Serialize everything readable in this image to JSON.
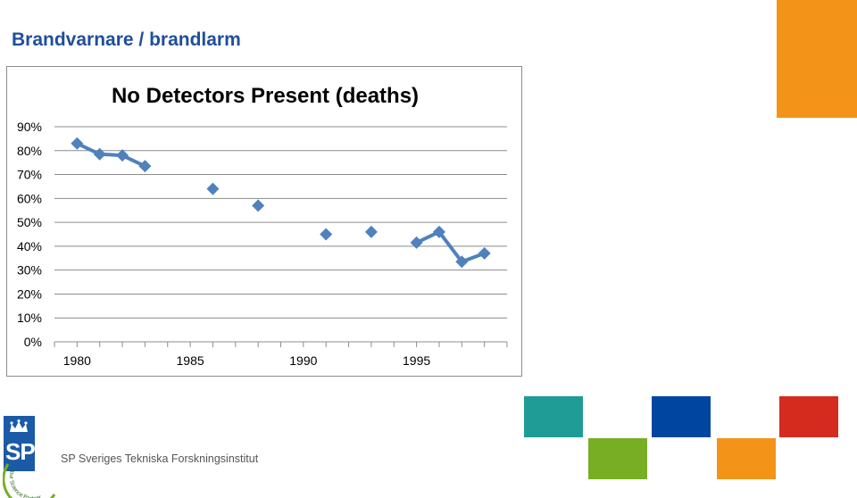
{
  "slide": {
    "title": "Brandvarnare / brandlarm"
  },
  "org": {
    "logo_text": "SP",
    "tagline_lines": [
      "Your",
      "Science Partner"
    ],
    "name": "SP Sveriges Tekniska Forskningsinstitut"
  },
  "colors": {
    "title": "#1f4e9c",
    "series": "#4f81bd",
    "orange": "#f39419",
    "teal": "#1f9c96",
    "blue": "#0046a0",
    "red": "#d52b1e",
    "green": "#78ae23",
    "logo_blue": "#1a5aa6"
  },
  "chart_data": {
    "type": "line",
    "title": "No Detectors Present (deaths)",
    "xlabel": "",
    "ylabel": "",
    "xlim": [
      1979,
      1999
    ],
    "ylim": [
      0,
      0.9
    ],
    "x_ticks": [
      1980,
      1985,
      1990,
      1995
    ],
    "y_ticks": [
      "0%",
      "10%",
      "20%",
      "30%",
      "40%",
      "50%",
      "60%",
      "70%",
      "80%",
      "90%"
    ],
    "grid": true,
    "legend": "none",
    "series": [
      {
        "marker": "diamond",
        "points": [
          {
            "x": 1980,
            "y": 0.83
          },
          {
            "x": 1981,
            "y": 0.785
          },
          {
            "x": 1982,
            "y": 0.78
          },
          {
            "x": 1983,
            "y": 0.735
          },
          {
            "x": 1986,
            "y": 0.64
          },
          {
            "x": 1988,
            "y": 0.57
          },
          {
            "x": 1991,
            "y": 0.45
          },
          {
            "x": 1993,
            "y": 0.46
          },
          {
            "x": 1995,
            "y": 0.415
          },
          {
            "x": 1996,
            "y": 0.46
          },
          {
            "x": 1997,
            "y": 0.335
          },
          {
            "x": 1998,
            "y": 0.37
          }
        ],
        "segments": [
          [
            0,
            1,
            2,
            3
          ],
          [
            8,
            9,
            10,
            11
          ]
        ]
      }
    ]
  }
}
